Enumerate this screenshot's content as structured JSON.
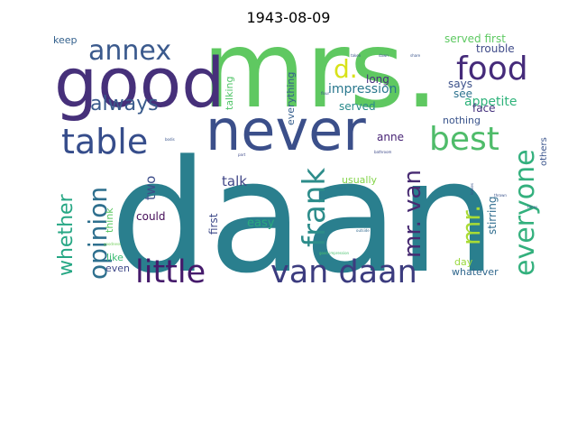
{
  "title": "1943-08-09",
  "words": [
    {
      "text": "daan",
      "color": "#2a7f8e"
    },
    {
      "text": "mrs.",
      "color": "#5fc861"
    },
    {
      "text": "good",
      "color": "#46307a"
    },
    {
      "text": "never",
      "color": "#3b4f8a"
    },
    {
      "text": "little",
      "color": "#451a6b"
    },
    {
      "text": "van daan",
      "color": "#3c3c7f"
    },
    {
      "text": "table",
      "color": "#364d8b"
    },
    {
      "text": "food",
      "color": "#452b7a"
    },
    {
      "text": "best",
      "color": "#4fbc6a"
    },
    {
      "text": "annex",
      "color": "#3b5a8d"
    },
    {
      "text": "frank",
      "color": "#2c8c8a"
    },
    {
      "text": "everyone",
      "color": "#33b07d"
    },
    {
      "text": "opinion",
      "color": "#2e6f8e"
    },
    {
      "text": "mr. van",
      "color": "#472a72"
    },
    {
      "text": "mr.",
      "color": "#a8db35"
    },
    {
      "text": "d.",
      "color": "#d8e219"
    },
    {
      "text": "always",
      "color": "#3a5b8c"
    },
    {
      "text": "whether",
      "color": "#26a784"
    },
    {
      "text": "impression",
      "color": "#2a788e"
    },
    {
      "text": "appetite",
      "color": "#2fb37b"
    },
    {
      "text": "talk",
      "color": "#404687"
    },
    {
      "text": "two",
      "color": "#3d4d8a"
    },
    {
      "text": "served first",
      "color": "#5ec962"
    },
    {
      "text": "trouble",
      "color": "#3f4b89"
    },
    {
      "text": "says",
      "color": "#3c518a"
    },
    {
      "text": "long",
      "color": "#472f7d"
    },
    {
      "text": "see",
      "color": "#2c728e"
    },
    {
      "text": "served",
      "color": "#2a8a8b"
    },
    {
      "text": "face",
      "color": "#46327e"
    },
    {
      "text": "nothing",
      "color": "#3a548c"
    },
    {
      "text": "anne",
      "color": "#482475"
    },
    {
      "text": "usually",
      "color": "#84d44b"
    },
    {
      "text": "easy",
      "color": "#2aa97f"
    },
    {
      "text": "could",
      "color": "#440c58"
    },
    {
      "text": "first",
      "color": "#3e4a89"
    },
    {
      "text": "like",
      "color": "#3dbc74"
    },
    {
      "text": "even",
      "color": "#3f4889"
    },
    {
      "text": "think",
      "color": "#5cc863"
    },
    {
      "text": "keep",
      "color": "#34618d"
    },
    {
      "text": "talking",
      "color": "#52c569"
    },
    {
      "text": "everything",
      "color": "#355e8d"
    },
    {
      "text": "stirring",
      "color": "#2f6c8e"
    },
    {
      "text": "day",
      "color": "#99d83d"
    },
    {
      "text": "whatever",
      "color": "#31688e"
    },
    {
      "text": "others",
      "color": "#3a548c"
    },
    {
      "text": "dawn",
      "color": "#3a548c"
    },
    {
      "text": "share",
      "color": "#3a548c"
    },
    {
      "text": "goodness",
      "color": "#6ece58"
    },
    {
      "text": "good impression",
      "color": "#4ac16d"
    },
    {
      "text": "bathroom",
      "color": "#3e4a89"
    },
    {
      "text": "outside",
      "color": "#31688e"
    },
    {
      "text": "much",
      "color": "#2a788e"
    },
    {
      "text": "part",
      "color": "#3e4a89"
    },
    {
      "text": "leaves",
      "color": "#3a548c"
    },
    {
      "text": "bodis",
      "color": "#3a548c"
    },
    {
      "text": "times",
      "color": "#3a548c"
    },
    {
      "text": "flour",
      "color": "#3a548c"
    },
    {
      "text": "taken",
      "color": "#3a548c"
    },
    {
      "text": "thrown",
      "color": "#3a548c"
    }
  ]
}
